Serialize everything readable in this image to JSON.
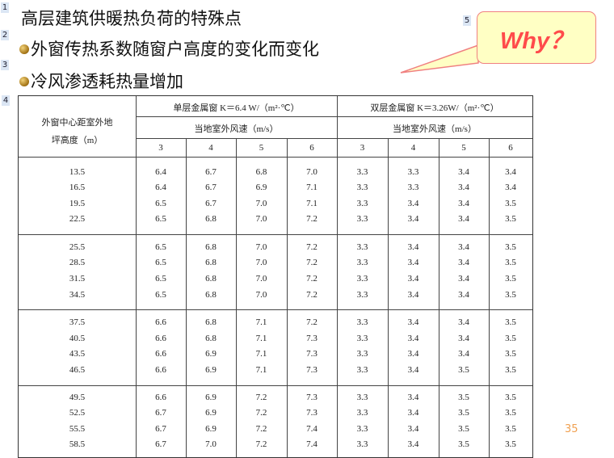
{
  "markers": [
    "1",
    "2",
    "3",
    "4",
    "5"
  ],
  "title": "高层建筑供暖热负荷的特殊点",
  "bullets": [
    "外窗传热系数随窗户高度的变化而变化",
    "冷风渗透耗热量增加"
  ],
  "callout": {
    "text": "Why？",
    "fill": "#ffffc4",
    "border": "#f08080",
    "text_color": "#ff4b4b"
  },
  "table": {
    "row_header": "外窗中心距室外地坪高度（m）",
    "groups": [
      {
        "title": "单层金属窗 K＝6.4 W/（m²·℃）",
        "subtitle": "当地室外风速（m/s）",
        "speeds": [
          "3",
          "4",
          "5",
          "6"
        ]
      },
      {
        "title": "双层金属窗 K＝3.26W/（m²·℃）",
        "subtitle": "当地室外风速（m/s）",
        "speeds": [
          "3",
          "4",
          "5",
          "6"
        ]
      }
    ],
    "rows": [
      [
        "13.5",
        "6.4",
        "6.7",
        "6.8",
        "7.0",
        "3.3",
        "3.3",
        "3.4",
        "3.4"
      ],
      [
        "16.5",
        "6.4",
        "6.7",
        "6.9",
        "7.1",
        "3.3",
        "3.3",
        "3.4",
        "3.4"
      ],
      [
        "19.5",
        "6.5",
        "6.7",
        "7.0",
        "7.1",
        "3.3",
        "3.4",
        "3.4",
        "3.5"
      ],
      [
        "22.5",
        "6.5",
        "6.8",
        "7.0",
        "7.2",
        "3.3",
        "3.4",
        "3.4",
        "3.5"
      ],
      [
        "25.5",
        "6.5",
        "6.8",
        "7.0",
        "7.2",
        "3.3",
        "3.4",
        "3.4",
        "3.5"
      ],
      [
        "28.5",
        "6.5",
        "6.8",
        "7.0",
        "7.2",
        "3.3",
        "3.4",
        "3.4",
        "3.5"
      ],
      [
        "31.5",
        "6.5",
        "6.8",
        "7.0",
        "7.2",
        "3.3",
        "3.4",
        "3.4",
        "3.5"
      ],
      [
        "34.5",
        "6.5",
        "6.8",
        "7.0",
        "7.2",
        "3.3",
        "3.4",
        "3.4",
        "3.5"
      ],
      [
        "37.5",
        "6.6",
        "6.8",
        "7.1",
        "7.2",
        "3.3",
        "3.4",
        "3.4",
        "3.5"
      ],
      [
        "40.5",
        "6.6",
        "6.8",
        "7.1",
        "7.3",
        "3.3",
        "3.4",
        "3.4",
        "3.5"
      ],
      [
        "43.5",
        "6.6",
        "6.9",
        "7.1",
        "7.3",
        "3.3",
        "3.4",
        "3.4",
        "3.5"
      ],
      [
        "46.5",
        "6.6",
        "6.9",
        "7.1",
        "7.3",
        "3.3",
        "3.4",
        "3.5",
        "3.5"
      ],
      [
        "49.5",
        "6.6",
        "6.9",
        "7.2",
        "7.3",
        "3.3",
        "3.4",
        "3.5",
        "3.5"
      ],
      [
        "52.5",
        "6.7",
        "6.9",
        "7.2",
        "7.3",
        "3.3",
        "3.4",
        "3.5",
        "3.5"
      ],
      [
        "55.5",
        "6.7",
        "6.9",
        "7.2",
        "7.4",
        "3.3",
        "3.4",
        "3.5",
        "3.5"
      ],
      [
        "58.5",
        "6.7",
        "7.0",
        "7.2",
        "7.4",
        "3.3",
        "3.4",
        "3.5",
        "3.5"
      ]
    ]
  },
  "page_number": "35"
}
